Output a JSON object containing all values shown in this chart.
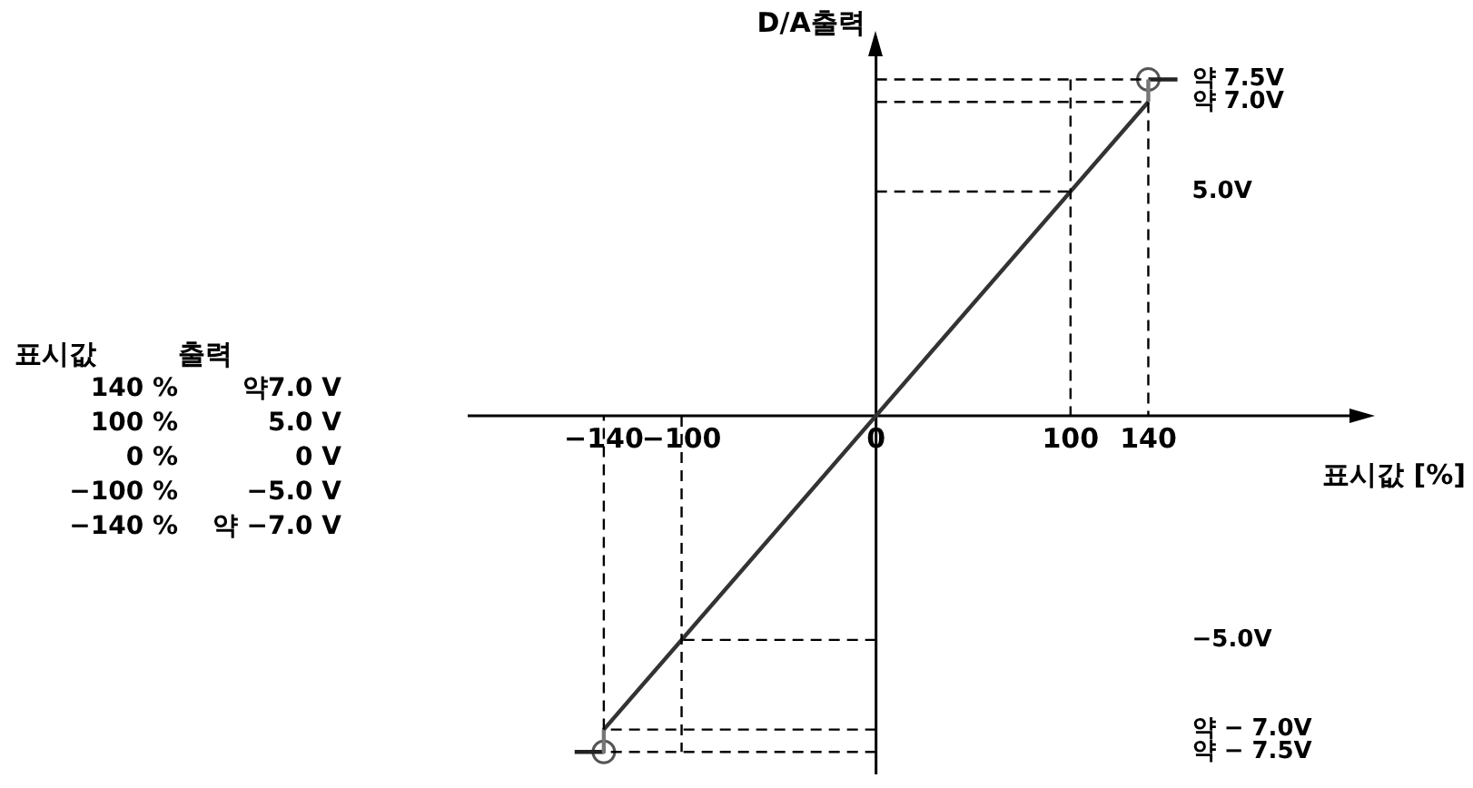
{
  "chart_data": {
    "type": "line",
    "xlabel": "표시값 [%]",
    "ylabel": "D/A출력",
    "xlim": [
      -210,
      250
    ],
    "ylim": [
      -8.0,
      8.3
    ],
    "xticks": [
      {
        "value": -140,
        "label": "−140"
      },
      {
        "value": -100,
        "label": "−100"
      },
      0,
      100,
      140
    ],
    "yticks": [
      {
        "value": 7.5,
        "label": "약 7.5V"
      },
      {
        "value": 7,
        "label": "약 7.0V"
      },
      {
        "value": 5,
        "label": "5.0V"
      },
      {
        "value": -5,
        "label": "−5.0V"
      },
      {
        "value": -7,
        "label": "약 − 7.0V"
      },
      {
        "value": -7.5,
        "label": "약 − 7.5V"
      }
    ],
    "legend": false,
    "series": [
      {
        "x": [
          0,
          140
        ],
        "values": [
          7.5,
          7.5
        ],
        "color": "#000000",
        "line_style": "dashed"
      },
      {
        "x": [
          0,
          140,
          140
        ],
        "values": [
          7,
          7,
          0
        ],
        "color": "#000000",
        "line_style": "dashed"
      },
      {
        "x": [
          100,
          100
        ],
        "values": [
          7.5,
          0
        ],
        "color": "#000000",
        "line_style": "dashed"
      },
      {
        "x": [
          0,
          100
        ],
        "values": [
          5,
          5
        ],
        "color": "#000000",
        "line_style": "dashed"
      },
      {
        "x": [
          0,
          -100
        ],
        "values": [
          -5,
          -5
        ],
        "color": "#000000",
        "line_style": "dashed"
      },
      {
        "x": [
          -100,
          -100
        ],
        "values": [
          0,
          -7.5
        ],
        "color": "#000000",
        "line_style": "dashed"
      },
      {
        "x": [
          0,
          -140,
          -140
        ],
        "values": [
          -7,
          -7,
          0
        ],
        "color": "#000000",
        "line_style": "dashed"
      },
      {
        "x": [
          0,
          -140
        ],
        "values": [
          -7.5,
          -7.5
        ],
        "color": "#000000",
        "line_style": "dashed"
      },
      {
        "x": [
          -140,
          140
        ],
        "values": [
          -7,
          7
        ],
        "color": "#333333",
        "line_style": "solid"
      },
      {
        "x": [
          140,
          140
        ],
        "values": [
          7,
          7.5
        ],
        "color": "#777777",
        "line_style": "solid"
      },
      {
        "x": [
          -140,
          -140
        ],
        "values": [
          -7,
          -7.5
        ],
        "color": "#777777",
        "line_style": "solid"
      },
      {
        "x": [
          140,
          155
        ],
        "values": [
          7.5,
          7.5
        ],
        "color": "#222222",
        "line_style": "solid"
      },
      {
        "x": [
          -155,
          -140
        ],
        "values": [
          -7.5,
          -7.5
        ],
        "color": "#222222",
        "line_style": "solid"
      },
      {
        "type": "scatter",
        "x": [
          140,
          -140
        ],
        "values": [
          7.5,
          -7.5
        ],
        "color": "#555555",
        "marker": "circle"
      }
    ],
    "annotations": [
      "표시값",
      "출력",
      "140 %",
      "약7.0 V",
      "100 %",
      "5.0 V",
      "0 %",
      "0 V",
      "−100 %",
      "−5.0 V",
      "−140 %",
      "약 −7.0 V"
    ]
  }
}
